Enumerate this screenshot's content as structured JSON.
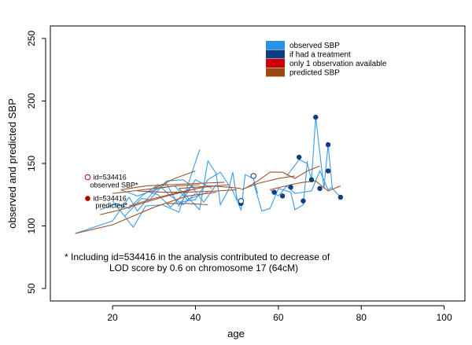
{
  "chart_data": {
    "type": "line",
    "xlabel": "age",
    "ylabel": "observed and predicted SBP",
    "xlim": [
      5,
      105
    ],
    "ylim": [
      40,
      260
    ],
    "x_ticks": [
      20,
      40,
      60,
      80,
      100
    ],
    "y_ticks": [
      50,
      100,
      150,
      200,
      250
    ],
    "grid": false,
    "legend_position": "top-right",
    "legend": [
      {
        "label": "observed SBP",
        "color": "#2b93e6"
      },
      {
        "label": "if had a treatment",
        "color": "#0b3f82"
      },
      {
        "label": "only 1 observation available",
        "color": "#cc0000"
      },
      {
        "label": "predicted SBP",
        "color": "#9a4a10"
      }
    ],
    "colors": {
      "observed": "#3a9be8",
      "predicted": "#a0522d",
      "treated": "#0b3f82",
      "single": "#b00000"
    },
    "observed_lines": [
      [
        [
          11,
          94
        ],
        [
          20,
          104
        ],
        [
          24,
          123
        ],
        [
          26,
          112
        ],
        [
          30,
          128
        ],
        [
          33,
          134
        ],
        [
          36,
          116
        ],
        [
          40,
          137
        ],
        [
          44,
          130
        ]
      ],
      [
        [
          20,
          120
        ],
        [
          25,
          99
        ],
        [
          28,
          116
        ],
        [
          32,
          117
        ],
        [
          36,
          111
        ],
        [
          41,
          161
        ]
      ],
      [
        [
          22,
          129
        ],
        [
          26,
          124
        ],
        [
          31,
          130
        ],
        [
          35,
          132
        ],
        [
          38,
          121
        ],
        [
          43,
          127
        ]
      ],
      [
        [
          17,
          113
        ],
        [
          21,
          118
        ],
        [
          24,
          114
        ],
        [
          27,
          124
        ],
        [
          31,
          133
        ],
        [
          34,
          124
        ],
        [
          37,
          117
        ],
        [
          40,
          126
        ]
      ],
      [
        [
          23,
          108
        ],
        [
          27,
          122
        ],
        [
          29,
          121
        ],
        [
          33,
          136
        ],
        [
          37,
          137
        ],
        [
          40,
          130
        ]
      ],
      [
        [
          28,
          128
        ],
        [
          31,
          125
        ],
        [
          34,
          115
        ],
        [
          39,
          132
        ],
        [
          42,
          119
        ],
        [
          45,
          133
        ]
      ],
      [
        [
          36,
          130
        ],
        [
          39,
          120
        ],
        [
          41,
          113
        ],
        [
          43,
          152
        ],
        [
          45,
          142
        ],
        [
          46,
          117
        ],
        [
          48,
          129
        ],
        [
          49,
          143
        ],
        [
          50,
          122
        ],
        [
          51,
          118
        ]
      ],
      [
        [
          36,
          119
        ],
        [
          40,
          121
        ],
        [
          43,
          137
        ],
        [
          46,
          143
        ],
        [
          49,
          128
        ],
        [
          51,
          113
        ],
        [
          52,
          141
        ],
        [
          54,
          138
        ],
        [
          55,
          126
        ]
      ],
      [
        [
          54,
          135
        ],
        [
          56,
          112
        ],
        [
          58,
          114
        ],
        [
          60,
          130
        ],
        [
          63,
          127
        ],
        [
          64,
          113
        ],
        [
          66,
          117
        ],
        [
          67,
          152
        ]
      ],
      [
        [
          62,
          140
        ],
        [
          65,
          153
        ],
        [
          67,
          150
        ],
        [
          68,
          137
        ],
        [
          69,
          187
        ],
        [
          71,
          130
        ],
        [
          72,
          165
        ],
        [
          73,
          130
        ],
        [
          75,
          123
        ]
      ],
      [
        [
          58,
          129
        ],
        [
          60,
          124
        ],
        [
          62,
          132
        ],
        [
          64,
          126
        ],
        [
          66,
          127
        ],
        [
          68,
          128
        ],
        [
          70,
          144
        ],
        [
          72,
          129
        ],
        [
          73,
          131
        ]
      ]
    ],
    "predicted_lines": [
      [
        [
          11,
          94
        ],
        [
          20,
          101
        ],
        [
          30,
          115
        ],
        [
          38,
          124
        ],
        [
          45,
          127
        ]
      ],
      [
        [
          20,
          126
        ],
        [
          25,
          128
        ],
        [
          30,
          130
        ],
        [
          35,
          132
        ],
        [
          41,
          133
        ]
      ],
      [
        [
          17,
          109
        ],
        [
          22,
          113
        ],
        [
          27,
          118
        ],
        [
          32,
          123
        ],
        [
          38,
          128
        ],
        [
          43,
          132
        ]
      ],
      [
        [
          24,
          116
        ],
        [
          30,
          122
        ],
        [
          36,
          127
        ],
        [
          42,
          131
        ],
        [
          48,
          133
        ]
      ],
      [
        [
          22,
          129
        ],
        [
          28,
          132
        ],
        [
          34,
          133
        ],
        [
          40,
          134
        ],
        [
          47,
          135
        ]
      ],
      [
        [
          26,
          128
        ],
        [
          32,
          127
        ],
        [
          38,
          127
        ],
        [
          45,
          128
        ],
        [
          50,
          129
        ]
      ],
      [
        [
          30,
          130
        ],
        [
          35,
          138
        ],
        [
          40,
          144
        ]
      ],
      [
        [
          36,
          130
        ],
        [
          40,
          131
        ],
        [
          44,
          132
        ],
        [
          48,
          131
        ],
        [
          51,
          130
        ]
      ],
      [
        [
          33,
          118
        ],
        [
          38,
          118
        ],
        [
          43,
          117
        ]
      ],
      [
        [
          52,
          130
        ],
        [
          55,
          136
        ],
        [
          58,
          143
        ],
        [
          61,
          143
        ],
        [
          64,
          138
        ],
        [
          67,
          144
        ],
        [
          70,
          148
        ]
      ],
      [
        [
          58,
          129
        ],
        [
          63,
          133
        ],
        [
          66,
          135
        ],
        [
          69,
          136
        ],
        [
          72,
          128
        ],
        [
          75,
          132
        ]
      ],
      [
        [
          51,
          129
        ],
        [
          55,
          134
        ],
        [
          60,
          138
        ],
        [
          64,
          140
        ]
      ]
    ],
    "treated_points": [
      [
        51,
        118
      ],
      [
        59,
        127
      ],
      [
        61,
        124
      ],
      [
        63,
        131
      ],
      [
        65,
        155
      ],
      [
        66,
        120
      ],
      [
        68,
        137
      ],
      [
        69,
        187
      ],
      [
        70,
        130
      ],
      [
        72,
        165
      ],
      [
        72,
        144
      ],
      [
        75,
        123
      ]
    ],
    "open_markers": [
      {
        "x": 51,
        "y": 120,
        "color": "#0b3f82"
      },
      {
        "x": 54,
        "y": 140,
        "color": "#0b3f82"
      }
    ],
    "annotations": {
      "observed_id": "id=534416",
      "observed_note": "observed SBP*",
      "observed_marker": {
        "x": 14,
        "y": 139
      },
      "predicted_id": "id=534416",
      "predicted_note": "predicted*",
      "predicted_marker": {
        "x": 14,
        "y": 122
      }
    },
    "footnote_line1": "* Including id=534416 in the analysis contributed to decrease of",
    "footnote_line2": "LOD score by 0.6 on chromosome 17 (64cM)"
  }
}
